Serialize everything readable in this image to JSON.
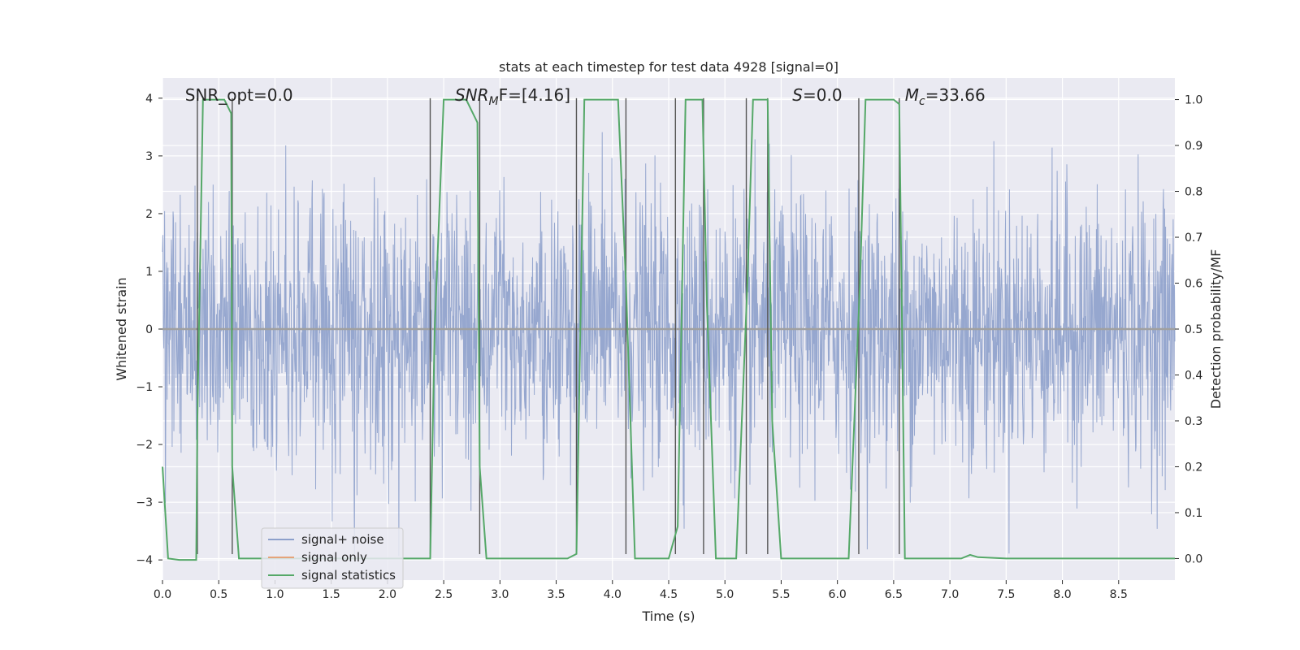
{
  "chart_data": {
    "type": "line",
    "title": "stats at each timestep for test data 4928 [signal=0]",
    "xlabel": "Time (s)",
    "ylabel": "Whitened strain",
    "y2label": "Detection probability/MF",
    "xlim": [
      0,
      9.0
    ],
    "ylim": [
      -4.35,
      4.35
    ],
    "y2lim": [
      -0.047,
      1.047
    ],
    "x_ticks": [
      0.0,
      0.5,
      1.0,
      1.5,
      2.0,
      2.5,
      3.0,
      3.5,
      4.0,
      4.5,
      5.0,
      5.5,
      6.0,
      6.5,
      7.0,
      7.5,
      8.0,
      8.5
    ],
    "x_tick_labels": [
      "0.0",
      "0.5",
      "1.0",
      "1.5",
      "2.0",
      "2.5",
      "3.0",
      "3.5",
      "4.0",
      "4.5",
      "5.0",
      "5.5",
      "6.0",
      "6.5",
      "7.0",
      "7.5",
      "8.0",
      "8.5"
    ],
    "y_ticks": [
      4,
      3,
      2,
      1,
      0,
      -1,
      -2,
      -3,
      -4
    ],
    "y_tick_labels": [
      "4",
      "3",
      "2",
      "1",
      "0",
      "−1",
      "−2",
      "−3",
      "−4"
    ],
    "y2_ticks": [
      1.0,
      0.9,
      0.8,
      0.7,
      0.6,
      0.5,
      0.4,
      0.3,
      0.2,
      0.1,
      0.0
    ],
    "y2_tick_labels": [
      "1.0",
      "0.9",
      "0.8",
      "0.7",
      "0.6",
      "0.5",
      "0.4",
      "0.3",
      "0.2",
      "0.1",
      "0.0"
    ],
    "grid": true,
    "legend_position": "lower-left",
    "annotations": [
      {
        "text": "SNR_opt=0.0",
        "x": 0.2
      },
      {
        "text": "SNR",
        "sub": "M",
        "rest": "F=[4.16]",
        "italic": true,
        "x": 2.6
      },
      {
        "text": "S",
        "rest": "=0.0",
        "italic": true,
        "x": 5.6
      },
      {
        "text": "M",
        "sub": "c",
        "rest": "=33.66",
        "italic": true,
        "x": 6.6
      }
    ],
    "series": [
      {
        "name": "signal+ noise",
        "color": "#8da0cb",
        "kind": "noise",
        "amplitude_range": [
          -4.0,
          4.0
        ],
        "seed": 4928
      },
      {
        "name": "signal only",
        "color": "#e5a37a",
        "values_const": 0
      },
      {
        "name": "signal statistics",
        "color": "#55a868",
        "axis": "right",
        "x": [
          0.0,
          0.05,
          0.15,
          0.3,
          0.31,
          0.36,
          0.55,
          0.61,
          0.62,
          0.68,
          1.0,
          2.38,
          2.42,
          2.5,
          2.7,
          2.8,
          2.82,
          2.88,
          3.6,
          3.68,
          3.75,
          4.05,
          4.12,
          4.2,
          4.5,
          4.58,
          4.65,
          4.8,
          4.84,
          4.92,
          5.1,
          5.2,
          5.25,
          5.38,
          5.42,
          5.5,
          6.1,
          6.2,
          6.25,
          6.5,
          6.55,
          6.6,
          6.7,
          7.1,
          7.18,
          7.25,
          7.5,
          9.0
        ],
        "values": [
          0.2,
          0.0,
          -0.003,
          -0.003,
          0.3,
          1.0,
          1.0,
          0.97,
          0.2,
          0.0,
          0.0,
          0.0,
          0.5,
          1.0,
          1.0,
          0.95,
          0.2,
          0.0,
          0.0,
          0.01,
          1.0,
          1.0,
          0.6,
          0.0,
          0.0,
          0.07,
          1.0,
          1.0,
          0.55,
          0.0,
          0.0,
          0.6,
          1.0,
          1.0,
          0.3,
          0.0,
          0.0,
          0.6,
          1.0,
          1.0,
          0.99,
          0.0,
          0.0,
          0.0,
          0.008,
          0.003,
          0.0,
          0.0
        ]
      },
      {
        "name": "",
        "color": "#555555",
        "kind": "vlines",
        "x": [
          0.31,
          0.62,
          2.38,
          2.82,
          3.68,
          4.12,
          4.56,
          4.81,
          5.19,
          5.38,
          6.19,
          6.55
        ]
      }
    ]
  }
}
